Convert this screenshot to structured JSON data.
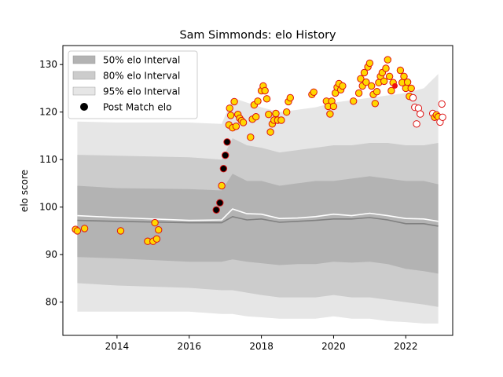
{
  "chart_data": {
    "type": "scatter",
    "title": "Sam Simmonds: elo History",
    "xlabel": "",
    "ylabel": "elo score",
    "xlim": [
      2012.5,
      2023.3
    ],
    "ylim": [
      73,
      134
    ],
    "x_ticks": [
      2014,
      2016,
      2018,
      2020,
      2022
    ],
    "y_ticks": [
      80,
      90,
      100,
      110,
      120,
      130
    ],
    "grid": false,
    "legend_position": "top-left",
    "legend": [
      {
        "key": "i50",
        "label": "50% elo Interval",
        "color": "#b3b3b3"
      },
      {
        "key": "i80",
        "label": "80% elo Interval",
        "color": "#cccccc"
      },
      {
        "key": "i95",
        "label": "95% elo Interval",
        "color": "#e6e6e6"
      },
      {
        "key": "post",
        "label": "Post Match elo",
        "color": "#000000"
      }
    ],
    "bands": {
      "x": [
        2012.9,
        2014.0,
        2016.0,
        2016.9,
        2017.2,
        2017.6,
        2018.0,
        2018.5,
        2019.0,
        2019.5,
        2020.0,
        2020.5,
        2021.0,
        2021.5,
        2022.0,
        2022.5,
        2022.9
      ],
      "median": [
        97.2,
        97.0,
        96.7,
        96.7,
        98.0,
        97.3,
        97.5,
        96.8,
        97.0,
        97.2,
        97.5,
        97.5,
        97.8,
        97.3,
        96.5,
        96.5,
        96.0
      ],
      "mean": [
        98.2,
        97.8,
        97.2,
        97.3,
        99.6,
        98.6,
        98.5,
        97.6,
        97.7,
        98.0,
        98.5,
        98.2,
        98.7,
        98.2,
        97.6,
        97.5,
        97.0
      ],
      "i50_low": [
        89.5,
        89.2,
        88.5,
        88.5,
        89.0,
        88.5,
        88.2,
        87.8,
        88.0,
        88.0,
        88.5,
        88.3,
        88.5,
        88.0,
        87.0,
        86.5,
        86.0
      ],
      "i50_high": [
        104.5,
        104.0,
        103.8,
        103.5,
        107.0,
        105.5,
        105.5,
        104.5,
        105.0,
        105.5,
        105.5,
        106.0,
        106.5,
        106.0,
        105.5,
        105.5,
        104.8
      ],
      "i80_low": [
        84.0,
        83.5,
        83.0,
        82.5,
        82.5,
        82.0,
        81.5,
        81.0,
        81.0,
        81.0,
        81.5,
        81.0,
        81.0,
        80.5,
        80.0,
        79.5,
        79.0
      ],
      "i80_high": [
        111.0,
        110.8,
        110.5,
        110.0,
        114.5,
        113.0,
        112.5,
        111.5,
        112.0,
        112.5,
        113.0,
        113.0,
        113.5,
        113.5,
        113.0,
        113.0,
        113.5
      ],
      "i95_low": [
        78.0,
        78.0,
        78.0,
        77.5,
        77.5,
        77.0,
        76.8,
        76.5,
        76.5,
        76.5,
        77.0,
        76.5,
        76.5,
        76.0,
        75.8,
        75.5,
        75.5
      ],
      "i95_high": [
        118.0,
        117.8,
        117.8,
        117.5,
        123.0,
        122.0,
        121.0,
        120.0,
        120.5,
        121.0,
        122.0,
        122.5,
        123.0,
        123.5,
        124.0,
        125.0,
        128.0
      ]
    },
    "series": [
      {
        "name": "Post Match elo",
        "points": [
          [
            2012.85,
            95.3
          ],
          [
            2012.9,
            95.0
          ],
          [
            2013.1,
            95.5
          ],
          [
            2014.1,
            95.0
          ],
          [
            2014.85,
            92.8
          ],
          [
            2015.0,
            92.8
          ],
          [
            2015.05,
            96.7
          ],
          [
            2015.1,
            93.3
          ],
          [
            2015.15,
            95.2
          ],
          [
            2016.75,
            99.4,
            "black"
          ],
          [
            2016.85,
            100.9,
            "black"
          ],
          [
            2016.9,
            104.5
          ],
          [
            2016.95,
            108.1,
            "black"
          ],
          [
            2017.0,
            110.9,
            "black"
          ],
          [
            2017.05,
            113.7,
            "black"
          ],
          [
            2017.1,
            117.3
          ],
          [
            2017.12,
            120.8
          ],
          [
            2017.15,
            119.3
          ],
          [
            2017.2,
            116.7
          ],
          [
            2017.25,
            122.2
          ],
          [
            2017.3,
            117.0
          ],
          [
            2017.35,
            119.5
          ],
          [
            2017.4,
            118.7
          ],
          [
            2017.45,
            118.2
          ],
          [
            2017.5,
            117.8
          ],
          [
            2017.7,
            114.7
          ],
          [
            2017.75,
            118.5
          ],
          [
            2017.8,
            121.5
          ],
          [
            2017.85,
            119.0
          ],
          [
            2017.9,
            122.3
          ],
          [
            2018.0,
            124.5
          ],
          [
            2018.05,
            125.5
          ],
          [
            2018.1,
            124.5
          ],
          [
            2018.15,
            122.8
          ],
          [
            2018.2,
            119.5
          ],
          [
            2018.25,
            115.8
          ],
          [
            2018.3,
            117.5
          ],
          [
            2018.35,
            118.3
          ],
          [
            2018.4,
            119.7
          ],
          [
            2018.45,
            118.3
          ],
          [
            2018.55,
            118.3
          ],
          [
            2018.7,
            120.0
          ],
          [
            2018.75,
            122.2
          ],
          [
            2018.8,
            123.0
          ],
          [
            2019.4,
            123.7
          ],
          [
            2019.45,
            124.2
          ],
          [
            2019.8,
            122.3
          ],
          [
            2019.85,
            121.2
          ],
          [
            2019.9,
            119.6
          ],
          [
            2019.95,
            122.3
          ],
          [
            2020.0,
            121.2
          ],
          [
            2020.05,
            124.0
          ],
          [
            2020.1,
            125.2
          ],
          [
            2020.15,
            126.0
          ],
          [
            2020.2,
            124.7
          ],
          [
            2020.25,
            125.5
          ],
          [
            2020.55,
            122.3
          ],
          [
            2020.7,
            124.0
          ],
          [
            2020.75,
            127.0
          ],
          [
            2020.8,
            125.5
          ],
          [
            2020.85,
            128.3
          ],
          [
            2020.9,
            126.3
          ],
          [
            2020.95,
            129.5
          ],
          [
            2021.0,
            130.3
          ],
          [
            2021.05,
            125.5
          ],
          [
            2021.1,
            123.7
          ],
          [
            2021.15,
            121.8
          ],
          [
            2021.2,
            124.3
          ],
          [
            2021.25,
            126.2
          ],
          [
            2021.3,
            127.5
          ],
          [
            2021.35,
            128.3
          ],
          [
            2021.4,
            126.5
          ],
          [
            2021.45,
            129.2
          ],
          [
            2021.5,
            131.0
          ],
          [
            2021.55,
            127.5
          ],
          [
            2021.6,
            124.5
          ],
          [
            2021.65,
            126.2
          ],
          [
            2021.7,
            125.5,
            "red"
          ],
          [
            2021.85,
            128.8
          ],
          [
            2021.9,
            126.2
          ],
          [
            2021.95,
            127.5
          ],
          [
            2022.0,
            125.0
          ],
          [
            2022.05,
            126.3
          ],
          [
            2022.1,
            123.3
          ],
          [
            2022.15,
            125.0
          ],
          [
            2022.2,
            123.0,
            "open"
          ],
          [
            2022.25,
            121.0,
            "open"
          ],
          [
            2022.3,
            117.5,
            "open"
          ],
          [
            2022.35,
            120.8,
            "open"
          ],
          [
            2022.4,
            119.6,
            "open"
          ],
          [
            2022.75,
            119.7,
            "open"
          ],
          [
            2022.8,
            118.9
          ],
          [
            2022.85,
            119.4
          ],
          [
            2022.9,
            119.0
          ],
          [
            2022.95,
            117.9,
            "open"
          ],
          [
            2023.0,
            121.7,
            "open"
          ],
          [
            2023.02,
            118.9,
            "open"
          ]
        ]
      }
    ]
  }
}
